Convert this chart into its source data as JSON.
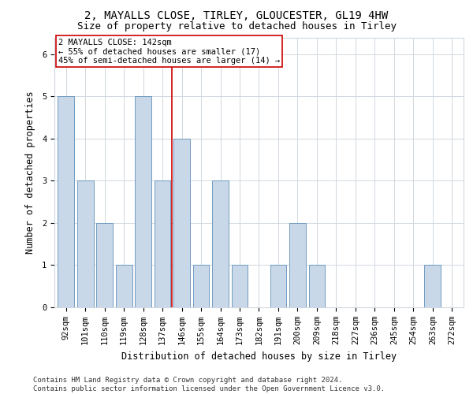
{
  "title_line1": "2, MAYALLS CLOSE, TIRLEY, GLOUCESTER, GL19 4HW",
  "title_line2": "Size of property relative to detached houses in Tirley",
  "xlabel": "Distribution of detached houses by size in Tirley",
  "ylabel": "Number of detached properties",
  "categories": [
    "92sqm",
    "101sqm",
    "110sqm",
    "119sqm",
    "128sqm",
    "137sqm",
    "146sqm",
    "155sqm",
    "164sqm",
    "173sqm",
    "182sqm",
    "191sqm",
    "200sqm",
    "209sqm",
    "218sqm",
    "227sqm",
    "236sqm",
    "245sqm",
    "254sqm",
    "263sqm",
    "272sqm"
  ],
  "values": [
    5,
    3,
    2,
    1,
    5,
    3,
    4,
    1,
    3,
    1,
    0,
    1,
    2,
    1,
    0,
    0,
    0,
    0,
    0,
    1,
    0
  ],
  "bar_color": "#c8d8e8",
  "bar_edge_color": "#6090b8",
  "vline_x": 5.5,
  "vline_color": "#cc0000",
  "annotation_box_text": "2 MAYALLS CLOSE: 142sqm\n← 55% of detached houses are smaller (17)\n45% of semi-detached houses are larger (14) →",
  "box_edge_color": "#cc0000",
  "ylim": [
    0,
    6.4
  ],
  "yticks": [
    0,
    1,
    2,
    3,
    4,
    5,
    6
  ],
  "footnote": "Contains HM Land Registry data © Crown copyright and database right 2024.\nContains public sector information licensed under the Open Government Licence v3.0.",
  "background_color": "#ffffff",
  "grid_color": "#d0d8e0",
  "title_fontsize": 10,
  "subtitle_fontsize": 9,
  "axis_label_fontsize": 8.5,
  "tick_fontsize": 7.5,
  "annotation_fontsize": 7.5,
  "footnote_fontsize": 6.5
}
